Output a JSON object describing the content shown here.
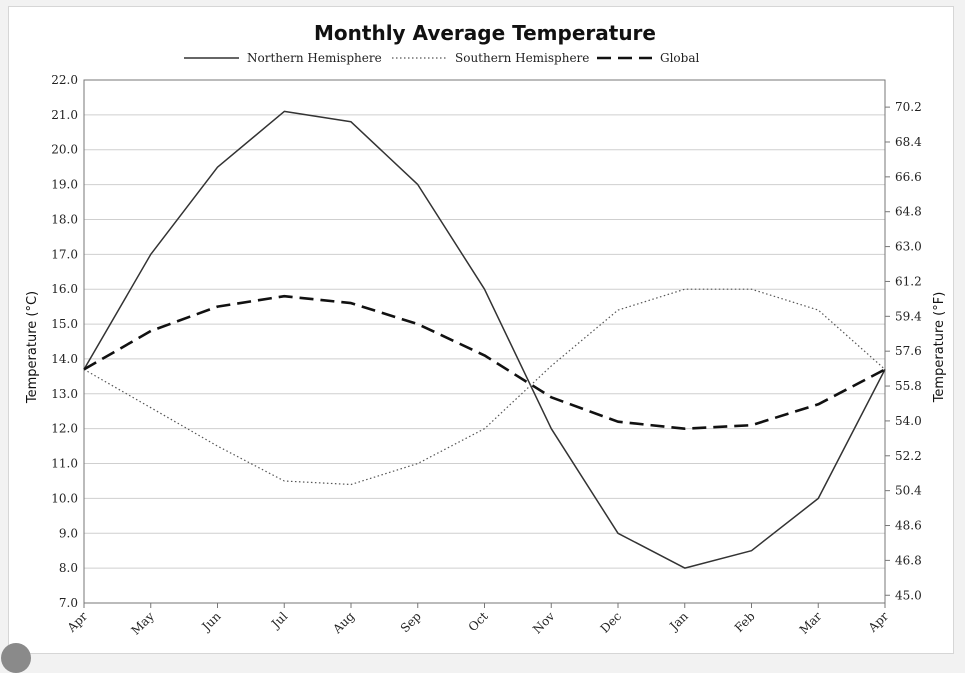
{
  "chart_data": {
    "type": "line",
    "title": "Monthly Average Temperature",
    "ylabel": "Temperature (°C)",
    "y2label": "Temperature (°F)",
    "categories": [
      "Apr",
      "May",
      "Jun",
      "Jul",
      "Aug",
      "Sep",
      "Oct",
      "Nov",
      "Dec",
      "Jan",
      "Feb",
      "Mar",
      "Apr"
    ],
    "ylim": [
      7.0,
      22.0
    ],
    "y_ticks": [
      "7.0",
      "8.0",
      "9.0",
      "10.0",
      "11.0",
      "12.0",
      "13.0",
      "14.0",
      "15.0",
      "16.0",
      "17.0",
      "18.0",
      "19.0",
      "20.0",
      "21.0",
      "22.0"
    ],
    "y2lim": [
      44.6,
      71.6
    ],
    "y2_ticks": [
      "45.0",
      "46.8",
      "48.6",
      "50.4",
      "52.2",
      "54.0",
      "55.8",
      "57.6",
      "59.4",
      "61.2",
      "63.0",
      "64.8",
      "66.6",
      "68.4",
      "70.2"
    ],
    "grid": true,
    "legend_position": "top",
    "series": [
      {
        "name": "Northern Hemisphere",
        "style": "solid",
        "color": "#333333",
        "values": [
          13.7,
          17.0,
          19.5,
          21.1,
          20.8,
          19.0,
          16.0,
          12.0,
          9.0,
          8.0,
          8.5,
          10.0,
          13.7
        ]
      },
      {
        "name": "Southern Hemisphere",
        "style": "dotted",
        "color": "#555555",
        "values": [
          13.7,
          12.6,
          11.5,
          10.5,
          10.4,
          11.0,
          12.0,
          13.8,
          15.4,
          16.0,
          16.0,
          15.4,
          13.7
        ]
      },
      {
        "name": "Global",
        "style": "dashed",
        "color": "#111111",
        "values": [
          13.7,
          14.8,
          15.5,
          15.8,
          15.6,
          15.0,
          14.1,
          12.9,
          12.2,
          12.0,
          12.1,
          12.7,
          13.7
        ]
      }
    ]
  }
}
